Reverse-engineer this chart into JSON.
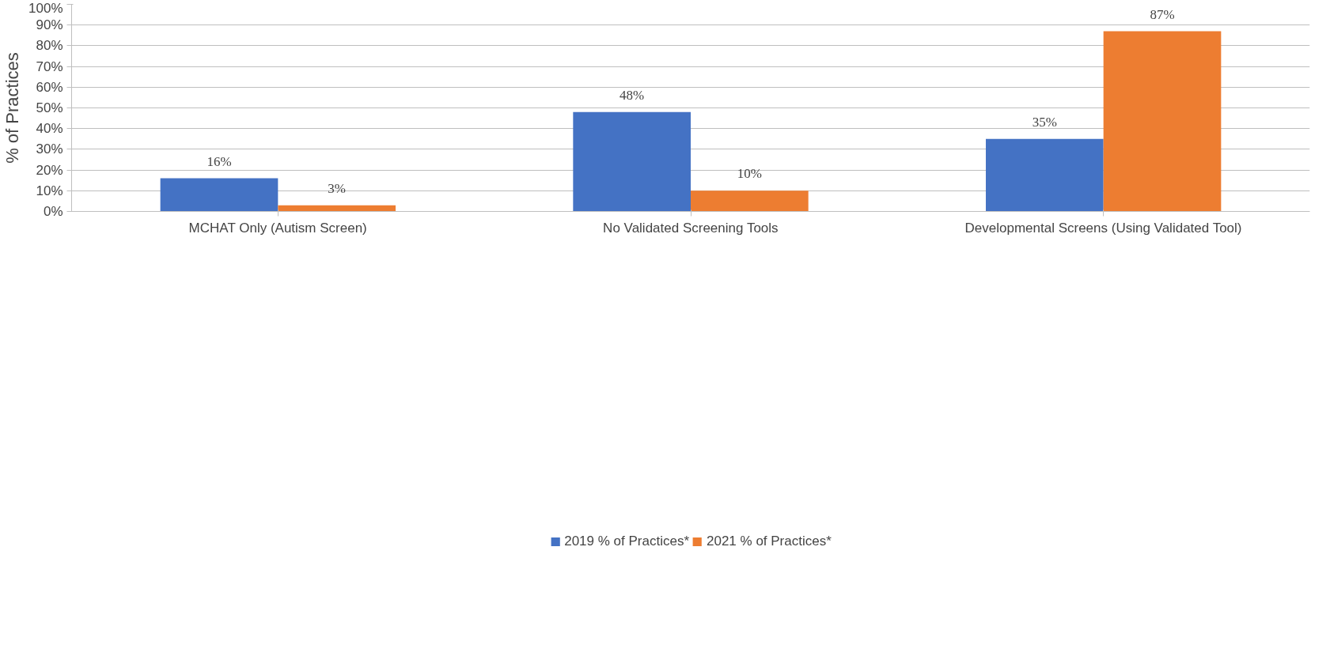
{
  "chart_data": {
    "type": "bar",
    "ylabel": "% of Practices",
    "categories": [
      "MCHAT Only (Autism Screen)",
      "No Validated Screening Tools",
      "Developmental Screens (Using Validated Tool)"
    ],
    "series": [
      {
        "name": "2019 % of Practices*",
        "color": "#4472c4",
        "values": [
          16,
          48,
          35
        ],
        "value_labels": [
          "16%",
          "48%",
          "35%"
        ]
      },
      {
        "name": "2021 % of Practices*",
        "color": "#ed7d31",
        "values": [
          3,
          10,
          87
        ],
        "value_labels": [
          "3%",
          "10%",
          "87%"
        ]
      }
    ],
    "ylim": [
      0,
      100
    ],
    "yticks": [
      {
        "value": 0,
        "label": "0%"
      },
      {
        "value": 10,
        "label": "10%"
      },
      {
        "value": 20,
        "label": "20%"
      },
      {
        "value": 30,
        "label": "30%"
      },
      {
        "value": 40,
        "label": "40%"
      },
      {
        "value": 50,
        "label": "50%"
      },
      {
        "value": 60,
        "label": "60%"
      },
      {
        "value": 70,
        "label": "70%"
      },
      {
        "value": 80,
        "label": "80%"
      },
      {
        "value": 90,
        "label": "90%"
      },
      {
        "value": 100,
        "label": "100%"
      }
    ],
    "grid": "y",
    "legend": "bottom"
  }
}
